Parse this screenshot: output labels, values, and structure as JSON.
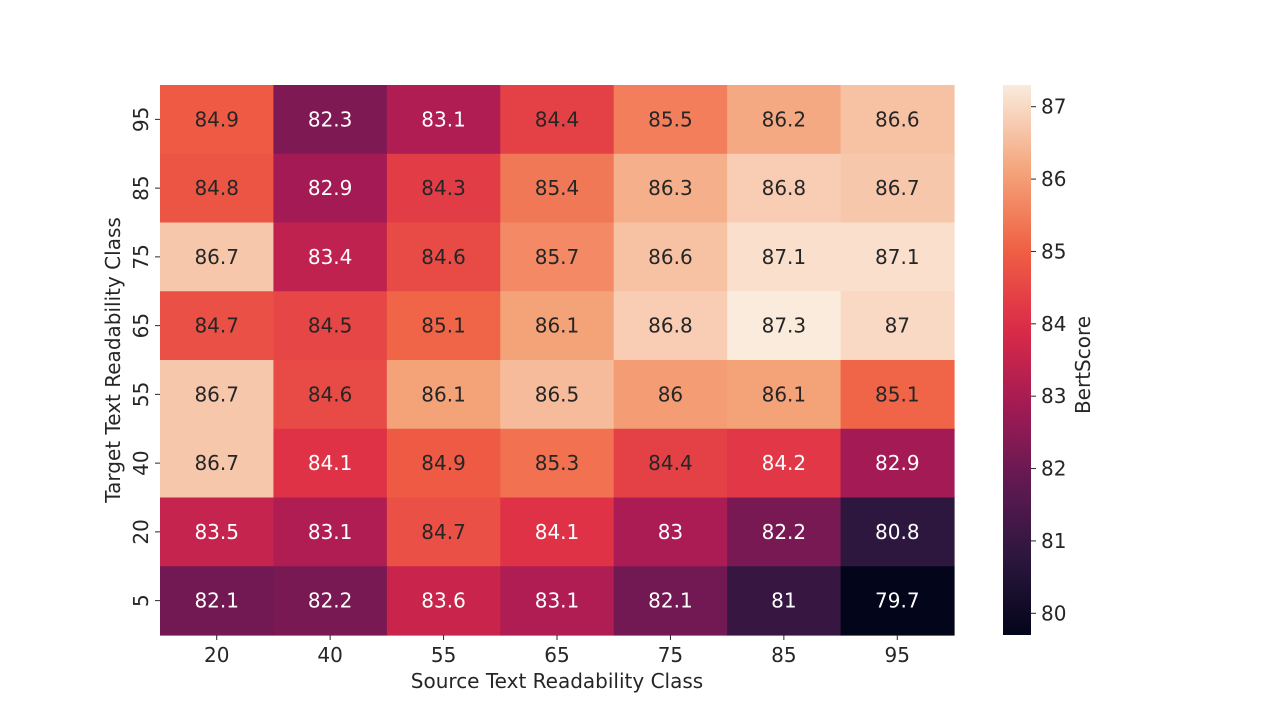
{
  "chart_data": {
    "type": "heatmap",
    "xlabel": "Source Text Readability Class",
    "ylabel": "Target Text Readability Class",
    "x_categories": [
      "20",
      "40",
      "55",
      "65",
      "75",
      "85",
      "95"
    ],
    "y_categories": [
      "95",
      "85",
      "75",
      "65",
      "55",
      "40",
      "20",
      "5"
    ],
    "values": [
      [
        84.9,
        82.3,
        83.1,
        84.4,
        85.5,
        86.2,
        86.6
      ],
      [
        84.8,
        82.9,
        84.3,
        85.4,
        86.3,
        86.8,
        86.7
      ],
      [
        86.7,
        83.4,
        84.6,
        85.7,
        86.6,
        87.1,
        87.1
      ],
      [
        84.7,
        84.5,
        85.1,
        86.1,
        86.8,
        87.3,
        87
      ],
      [
        86.7,
        84.6,
        86.1,
        86.5,
        86,
        86.1,
        85.1
      ],
      [
        86.7,
        84.1,
        84.9,
        85.3,
        84.4,
        84.2,
        82.9
      ],
      [
        83.5,
        83.1,
        84.7,
        84.1,
        83,
        82.2,
        80.8
      ],
      [
        82.1,
        82.2,
        83.6,
        83.1,
        82.1,
        81,
        79.7
      ]
    ],
    "colorbar": {
      "label": "BertScore",
      "ticks": [
        "80",
        "81",
        "82",
        "83",
        "84",
        "85",
        "86",
        "87"
      ],
      "range": [
        79.7,
        87.3
      ],
      "colormap": "rocket"
    },
    "legend": "colorbar-right"
  }
}
